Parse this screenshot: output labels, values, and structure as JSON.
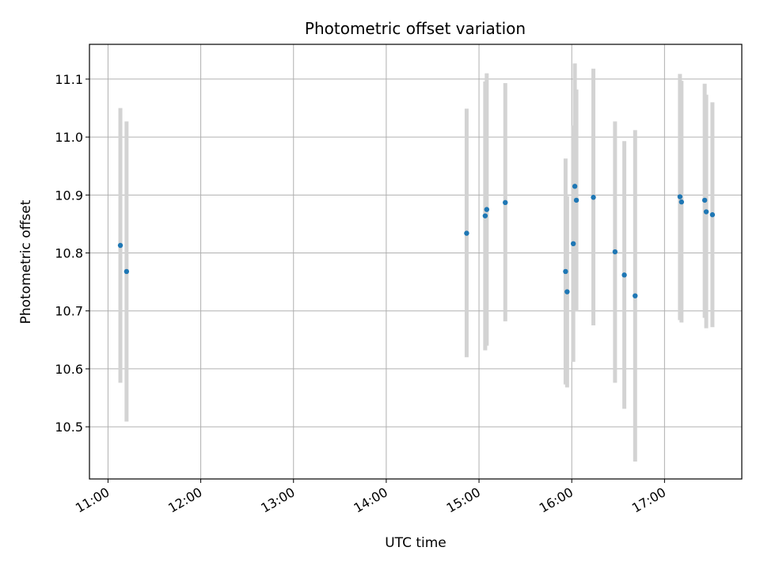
{
  "chart_data": {
    "type": "scatter",
    "title": "Photometric offset variation",
    "xlabel": "UTC time",
    "ylabel": "Photometric offset",
    "x_ticks": [
      "11:00",
      "12:00",
      "13:00",
      "14:00",
      "15:00",
      "16:00",
      "17:00"
    ],
    "y_ticks": [
      "10.5",
      "10.6",
      "10.7",
      "10.8",
      "10.9",
      "11.0",
      "11.1"
    ],
    "xlim": [
      "10:48",
      "17:50"
    ],
    "ylim": [
      10.41,
      11.16
    ],
    "grid": true,
    "error_bars": true,
    "colors": {
      "point": "#1f77b4",
      "errorbar": "#d3d3d3",
      "grid": "#b0b0b0"
    },
    "points": [
      {
        "x": "11:08",
        "y": 10.813,
        "ylow": 10.576,
        "yhigh": 11.05
      },
      {
        "x": "11:12",
        "y": 10.768,
        "ylow": 10.509,
        "yhigh": 11.027
      },
      {
        "x": "14:52",
        "y": 10.834,
        "ylow": 10.62,
        "yhigh": 11.049
      },
      {
        "x": "15:04",
        "y": 10.864,
        "ylow": 10.632,
        "yhigh": 11.096
      },
      {
        "x": "15:05",
        "y": 10.875,
        "ylow": 10.64,
        "yhigh": 11.11
      },
      {
        "x": "15:17",
        "y": 10.887,
        "ylow": 10.682,
        "yhigh": 11.093
      },
      {
        "x": "15:56",
        "y": 10.768,
        "ylow": 10.573,
        "yhigh": 10.963
      },
      {
        "x": "15:57",
        "y": 10.733,
        "ylow": 10.568,
        "yhigh": 10.898
      },
      {
        "x": "16:01",
        "y": 10.816,
        "ylow": 10.612,
        "yhigh": 11.02
      },
      {
        "x": "16:02",
        "y": 10.915,
        "ylow": 10.705,
        "yhigh": 11.127
      },
      {
        "x": "16:03",
        "y": 10.891,
        "ylow": 10.699,
        "yhigh": 11.082
      },
      {
        "x": "16:14",
        "y": 10.896,
        "ylow": 10.675,
        "yhigh": 11.118
      },
      {
        "x": "16:28",
        "y": 10.802,
        "ylow": 10.576,
        "yhigh": 11.027
      },
      {
        "x": "16:34",
        "y": 10.762,
        "ylow": 10.531,
        "yhigh": 10.993
      },
      {
        "x": "16:41",
        "y": 10.726,
        "ylow": 10.44,
        "yhigh": 11.012
      },
      {
        "x": "17:10",
        "y": 10.897,
        "ylow": 10.684,
        "yhigh": 11.109
      },
      {
        "x": "17:11",
        "y": 10.888,
        "ylow": 10.68,
        "yhigh": 11.097
      },
      {
        "x": "17:26",
        "y": 10.891,
        "ylow": 10.688,
        "yhigh": 11.092
      },
      {
        "x": "17:27",
        "y": 10.871,
        "ylow": 10.67,
        "yhigh": 11.073
      },
      {
        "x": "17:31",
        "y": 10.866,
        "ylow": 10.672,
        "yhigh": 11.06
      }
    ]
  }
}
